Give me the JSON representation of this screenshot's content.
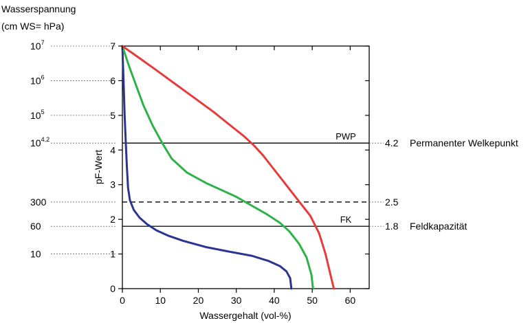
{
  "chart_data": {
    "type": "line",
    "title": "",
    "left_header": [
      "Wasserspannung",
      "(cm WS= hPa)"
    ],
    "xlabel": "Wassergehalt (vol-%)",
    "ylabel": "pF-Wert",
    "xlim": [
      0,
      65
    ],
    "ylim": [
      0,
      7
    ],
    "x_ticks": [
      "0",
      "10",
      "20",
      "30",
      "40",
      "50",
      "60"
    ],
    "y_ticks": [
      "0",
      "1",
      "2",
      "3",
      "4",
      "5",
      "6",
      "7"
    ],
    "tension_ticks": [
      {
        "pf": 7,
        "base": "10",
        "exp": "7"
      },
      {
        "pf": 6,
        "base": "10",
        "exp": "6"
      },
      {
        "pf": 5,
        "base": "10",
        "exp": "5"
      },
      {
        "pf": 4.2,
        "base": "10",
        "exp": "4.2"
      },
      {
        "pf": 2.5,
        "base": "300",
        "exp": ""
      },
      {
        "pf": 1.8,
        "base": "60",
        "exp": ""
      },
      {
        "pf": 1,
        "base": "10",
        "exp": ""
      }
    ],
    "reference_lines": [
      {
        "pf": 4.2,
        "style": "solid",
        "inner_label": "PWP",
        "value_label": "4.2",
        "description": "Permanenter Welkepunkt"
      },
      {
        "pf": 2.5,
        "style": "dashed",
        "inner_label": "",
        "value_label": "2.5",
        "description": ""
      },
      {
        "pf": 1.8,
        "style": "solid",
        "inner_label": "FK",
        "value_label": "1.8",
        "description": "Feldkapazität"
      }
    ],
    "series": [
      {
        "color": "#2a3592",
        "x": [
          44.5,
          44.2,
          43.2,
          41.5,
          38.5,
          34,
          28,
          22,
          16,
          12,
          9,
          6.5,
          4.5,
          3,
          2,
          1.5,
          1.2,
          0.9,
          0.6,
          0.3,
          0
        ],
        "y": [
          0,
          0.3,
          0.5,
          0.65,
          0.8,
          0.95,
          1.07,
          1.2,
          1.38,
          1.53,
          1.68,
          1.86,
          2.05,
          2.27,
          2.55,
          2.9,
          3.5,
          4.2,
          5,
          6,
          7
        ]
      },
      {
        "color": "#2db24a",
        "x": [
          50.2,
          49.8,
          48.5,
          46.5,
          44,
          41.5,
          38,
          34,
          30,
          26,
          22,
          17,
          13,
          10.5,
          8,
          5.5,
          3.5,
          1.5,
          0
        ],
        "y": [
          0,
          0.4,
          0.9,
          1.3,
          1.65,
          1.9,
          2.15,
          2.4,
          2.65,
          2.85,
          3.05,
          3.35,
          3.75,
          4.2,
          4.7,
          5.3,
          5.9,
          6.5,
          7
        ]
      },
      {
        "color": "#e53b3b",
        "x": [
          55.7,
          54.8,
          53.5,
          51.8,
          49.5,
          47,
          44.5,
          42,
          39.5,
          37,
          34.5,
          32,
          28,
          24,
          19,
          14,
          9,
          4.5,
          0
        ],
        "y": [
          0,
          0.4,
          1,
          1.6,
          2.1,
          2.45,
          2.8,
          3.15,
          3.5,
          3.85,
          4.15,
          4.4,
          4.75,
          5.1,
          5.5,
          5.9,
          6.3,
          6.65,
          7
        ]
      }
    ]
  }
}
